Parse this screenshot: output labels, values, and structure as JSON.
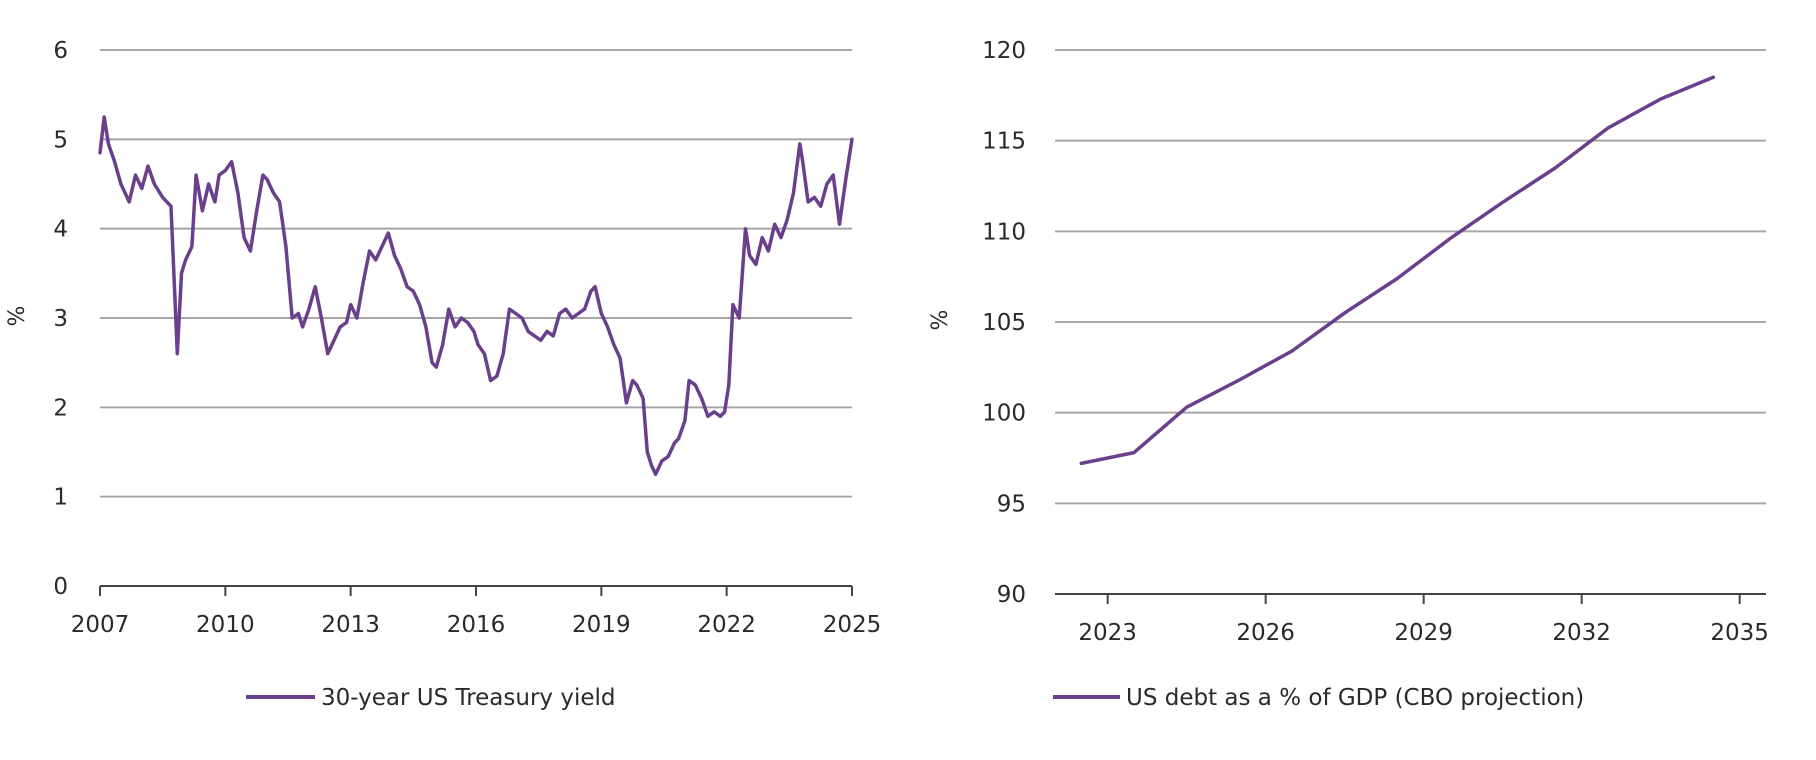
{
  "accent_color": "#6a3f8c",
  "grid_color": "#a6a6a6",
  "chart_data": [
    {
      "type": "line",
      "title": "",
      "xlabel": "",
      "ylabel": "%",
      "xlim": [
        2007,
        2025
      ],
      "ylim": [
        0,
        6
      ],
      "x_ticks": [
        "2007",
        "2010",
        "2013",
        "2016",
        "2019",
        "2022",
        "2025"
      ],
      "y_ticks": [
        "0",
        "1",
        "2",
        "3",
        "4",
        "5",
        "6"
      ],
      "grid": "horizontal",
      "legend_position": "bottom",
      "series": [
        {
          "name": "30-year US Treasury yield",
          "x": [
            2007.0,
            2007.1,
            2007.2,
            2007.35,
            2007.5,
            2007.7,
            2007.85,
            2008.0,
            2008.15,
            2008.3,
            2008.5,
            2008.7,
            2008.85,
            2008.95,
            2009.05,
            2009.2,
            2009.3,
            2009.45,
            2009.6,
            2009.75,
            2009.85,
            2010.0,
            2010.15,
            2010.3,
            2010.45,
            2010.6,
            2010.75,
            2010.9,
            2011.0,
            2011.15,
            2011.3,
            2011.45,
            2011.6,
            2011.75,
            2011.85,
            2012.0,
            2012.15,
            2012.3,
            2012.45,
            2012.6,
            2012.75,
            2012.9,
            2013.0,
            2013.15,
            2013.3,
            2013.45,
            2013.6,
            2013.75,
            2013.9,
            2014.05,
            2014.2,
            2014.35,
            2014.5,
            2014.65,
            2014.8,
            2014.95,
            2015.05,
            2015.2,
            2015.35,
            2015.5,
            2015.65,
            2015.8,
            2015.95,
            2016.05,
            2016.2,
            2016.35,
            2016.5,
            2016.65,
            2016.8,
            2016.95,
            2017.1,
            2017.25,
            2017.4,
            2017.55,
            2017.7,
            2017.85,
            2018.0,
            2018.15,
            2018.3,
            2018.45,
            2018.6,
            2018.75,
            2018.85,
            2019.0,
            2019.15,
            2019.3,
            2019.45,
            2019.6,
            2019.75,
            2019.85,
            2020.0,
            2020.1,
            2020.2,
            2020.3,
            2020.45,
            2020.6,
            2020.75,
            2020.85,
            2021.0,
            2021.1,
            2021.25,
            2021.4,
            2021.55,
            2021.7,
            2021.85,
            2021.95,
            2022.05,
            2022.15,
            2022.3,
            2022.45,
            2022.55,
            2022.7,
            2022.85,
            2023.0,
            2023.15,
            2023.3,
            2023.45,
            2023.6,
            2023.75,
            2023.82,
            2023.95,
            2024.1,
            2024.25,
            2024.4,
            2024.55,
            2024.7,
            2024.85,
            2025.0
          ],
          "y": [
            4.85,
            5.25,
            4.95,
            4.75,
            4.5,
            4.3,
            4.6,
            4.45,
            4.7,
            4.5,
            4.35,
            4.25,
            2.6,
            3.5,
            3.65,
            3.8,
            4.6,
            4.2,
            4.5,
            4.3,
            4.6,
            4.65,
            4.75,
            4.4,
            3.9,
            3.75,
            4.2,
            4.6,
            4.55,
            4.4,
            4.3,
            3.8,
            3.0,
            3.05,
            2.9,
            3.1,
            3.35,
            3.0,
            2.6,
            2.75,
            2.9,
            2.95,
            3.15,
            3.0,
            3.4,
            3.75,
            3.65,
            3.8,
            3.95,
            3.7,
            3.55,
            3.35,
            3.3,
            3.15,
            2.9,
            2.5,
            2.45,
            2.7,
            3.1,
            2.9,
            3.0,
            2.95,
            2.85,
            2.7,
            2.6,
            2.3,
            2.35,
            2.6,
            3.1,
            3.05,
            3.0,
            2.85,
            2.8,
            2.75,
            2.85,
            2.8,
            3.05,
            3.1,
            3.0,
            3.05,
            3.1,
            3.3,
            3.35,
            3.05,
            2.9,
            2.7,
            2.55,
            2.05,
            2.3,
            2.25,
            2.1,
            1.5,
            1.35,
            1.25,
            1.4,
            1.45,
            1.6,
            1.65,
            1.85,
            2.3,
            2.25,
            2.1,
            1.9,
            1.95,
            1.9,
            1.95,
            2.25,
            3.15,
            3.0,
            4.0,
            3.7,
            3.6,
            3.9,
            3.75,
            4.05,
            3.9,
            4.1,
            4.4,
            4.95,
            4.75,
            4.3,
            4.35,
            4.25,
            4.5,
            4.6,
            4.05,
            4.55,
            5.0
          ]
        }
      ]
    },
    {
      "type": "line",
      "title": "",
      "xlabel": "",
      "ylabel": "%",
      "xlim": [
        2022,
        2035.5
      ],
      "ylim": [
        90,
        120
      ],
      "x_ticks": [
        "2023",
        "2026",
        "2029",
        "2032",
        "2035"
      ],
      "y_ticks": [
        "90",
        "95",
        "100",
        "105",
        "110",
        "115",
        "120"
      ],
      "grid": "horizontal",
      "legend_position": "bottom",
      "series": [
        {
          "name": "US debt as a % of GDP (CBO projection)",
          "x": [
            2022.5,
            2023.5,
            2024.5,
            2025.5,
            2026.5,
            2027.5,
            2028.5,
            2029.5,
            2030.5,
            2031.5,
            2032.5,
            2033.5,
            2034.5
          ],
          "y": [
            97.2,
            97.8,
            100.3,
            101.8,
            103.4,
            105.5,
            107.4,
            109.6,
            111.6,
            113.5,
            115.7,
            117.3,
            118.5
          ]
        }
      ]
    }
  ]
}
